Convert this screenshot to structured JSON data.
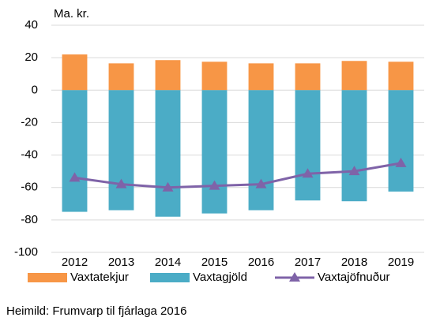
{
  "chart_data": {
    "type": "bar",
    "unit_label": "Ma. kr.",
    "source": "Heimild: Frumvarp til fjárlaga 2016",
    "categories": [
      "2012",
      "2013",
      "2014",
      "2015",
      "2016",
      "2017",
      "2018",
      "2019"
    ],
    "series": [
      {
        "name": "Vaxtatekjur",
        "color": "#f79646",
        "kind": "bar",
        "values": [
          22,
          16.5,
          18.5,
          17.5,
          16.5,
          16.5,
          18,
          17.5
        ]
      },
      {
        "name": "Vaxtagjöld",
        "color": "#4bacc6",
        "kind": "bar",
        "values": [
          -75,
          -74,
          -78,
          -76,
          -74,
          -68,
          -68.5,
          -62.5
        ]
      },
      {
        "name": "Vaxtajöfnuður",
        "color": "#7f63a8",
        "kind": "line",
        "values": [
          -54,
          -58,
          -60,
          -59,
          -58,
          -51.5,
          -50,
          -45
        ]
      }
    ],
    "ylim": [
      -100,
      40
    ],
    "yticks": [
      -100,
      -80,
      -60,
      -40,
      -20,
      0,
      20,
      40
    ],
    "grid": true
  }
}
